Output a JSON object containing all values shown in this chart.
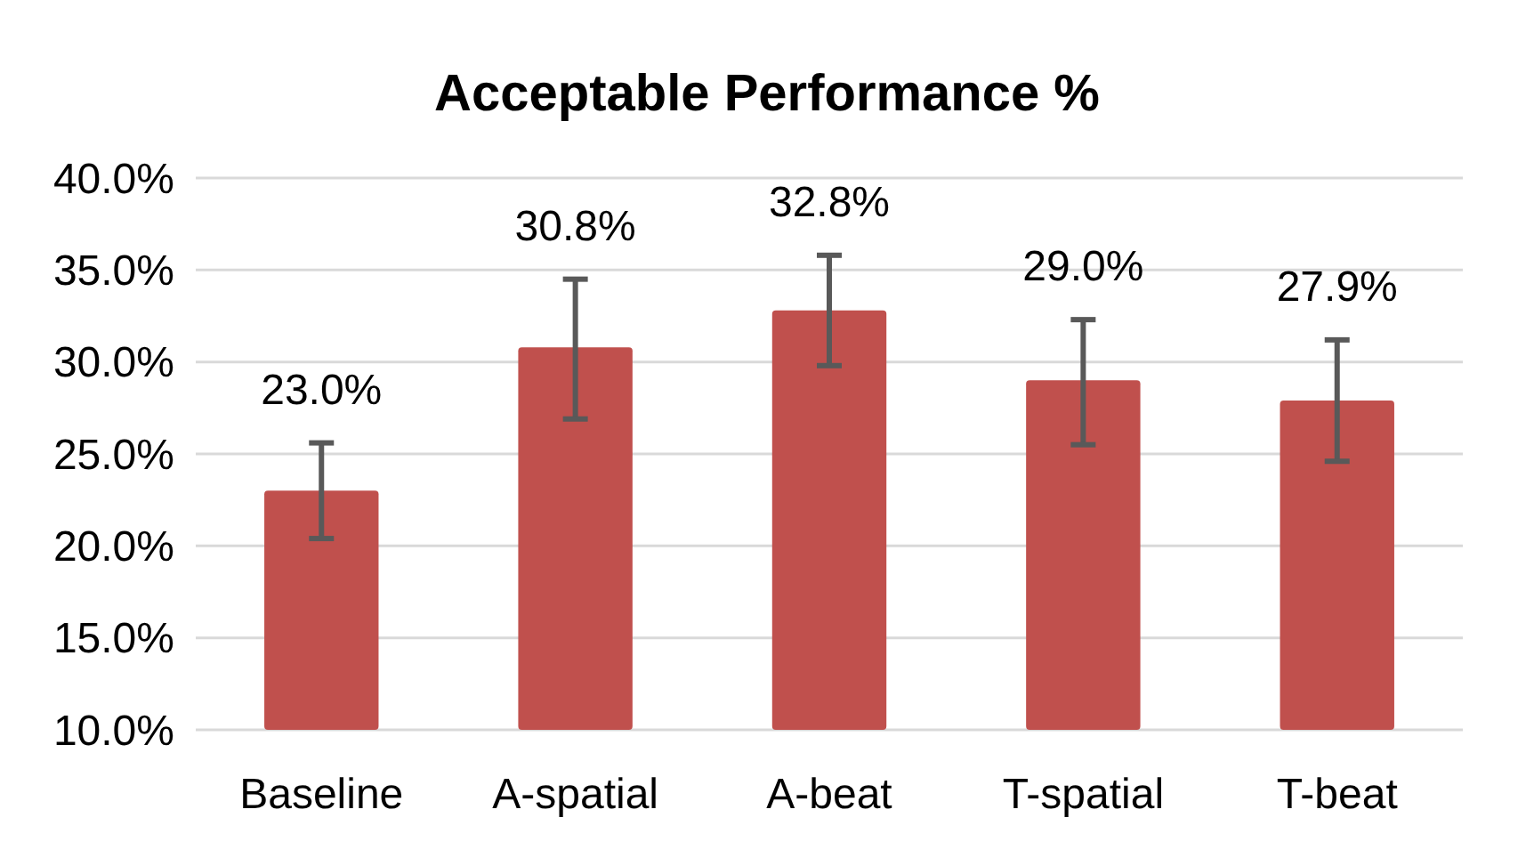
{
  "chart_data": {
    "type": "bar",
    "title": "Acceptable Performance %",
    "categories": [
      "Baseline",
      "A-spatial",
      "A-beat",
      "T-spatial",
      "T-beat"
    ],
    "values": [
      23.0,
      30.8,
      32.8,
      29.0,
      27.9
    ],
    "value_labels": [
      "23.0%",
      "30.8%",
      "32.8%",
      "29.0%",
      "27.9%"
    ],
    "errors": [
      [
        20.4,
        25.6
      ],
      [
        26.9,
        34.5
      ],
      [
        29.8,
        35.8
      ],
      [
        25.5,
        32.3
      ],
      [
        24.6,
        31.2
      ]
    ],
    "color": "#c0504d",
    "ylim": [
      10,
      40
    ],
    "yticks": [
      {
        "value": 10,
        "label": "10.0%"
      },
      {
        "value": 15,
        "label": "15.0%"
      },
      {
        "value": 20,
        "label": "20.0%"
      },
      {
        "value": 25,
        "label": "25.0%"
      },
      {
        "value": 30,
        "label": "30.0%"
      },
      {
        "value": 35,
        "label": "35.0%"
      },
      {
        "value": 40,
        "label": "40.0%"
      }
    ],
    "grid": "y"
  }
}
